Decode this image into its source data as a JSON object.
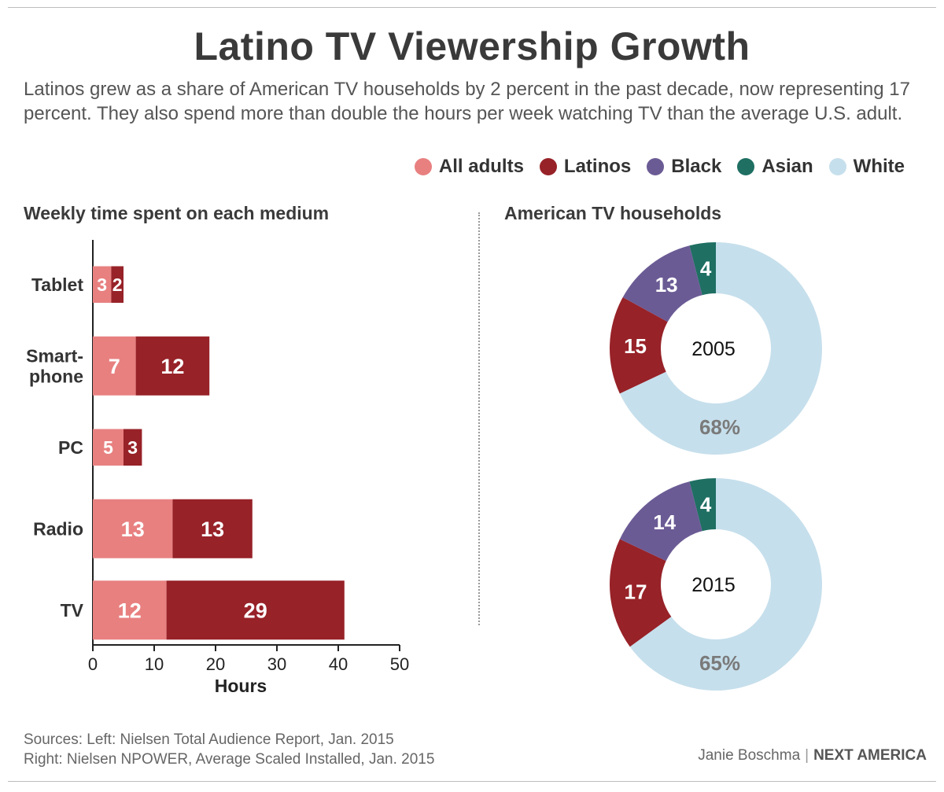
{
  "header": {
    "title": "Latino TV Viewership Growth",
    "subtitle": "Latinos grew as a share of American TV households by 2 percent in the past decade, now representing 17 percent. They also spend more than double the hours per week watching TV than the average U.S. adult."
  },
  "legend": [
    {
      "label": "All adults",
      "color": "#e88080"
    },
    {
      "label": "Latinos",
      "color": "#972228"
    },
    {
      "label": "Black",
      "color": "#6b5b95"
    },
    {
      "label": "Asian",
      "color": "#1f6f63"
    },
    {
      "label": "White",
      "color": "#c6dfec"
    }
  ],
  "chart_data": [
    {
      "type": "bar",
      "title": "Weekly time spent on each medium",
      "xlabel": "Hours",
      "xlim": [
        0,
        50
      ],
      "xticks": [
        0,
        10,
        20,
        30,
        40,
        50
      ],
      "categories": [
        "Tablet",
        "Smart-\nphone",
        "PC",
        "Radio",
        "TV"
      ],
      "series": [
        {
          "name": "All adults",
          "color": "#e88080",
          "values": [
            3,
            7,
            5,
            13,
            12
          ]
        },
        {
          "name": "Latinos",
          "color": "#972228",
          "values": [
            2,
            12,
            3,
            13,
            29
          ]
        }
      ]
    },
    {
      "type": "pie",
      "title": "American TV households",
      "center_label": "2005",
      "slices": [
        {
          "name": "Asian",
          "value": 4,
          "label": "4",
          "color": "#1f6f63"
        },
        {
          "name": "Black",
          "value": 13,
          "label": "13",
          "color": "#6b5b95"
        },
        {
          "name": "Latinos",
          "value": 15,
          "label": "15",
          "color": "#972228"
        },
        {
          "name": "White",
          "value": 68,
          "label": "68%",
          "color": "#c6dfec"
        }
      ]
    },
    {
      "type": "pie",
      "title": "American TV households",
      "center_label": "2015",
      "slices": [
        {
          "name": "Asian",
          "value": 4,
          "label": "4",
          "color": "#1f6f63"
        },
        {
          "name": "Black",
          "value": 14,
          "label": "14",
          "color": "#6b5b95"
        },
        {
          "name": "Latinos",
          "value": 17,
          "label": "17",
          "color": "#972228"
        },
        {
          "name": "White",
          "value": 65,
          "label": "65%",
          "color": "#c6dfec"
        }
      ]
    }
  ],
  "footer": {
    "sources_line1": "Sources: Left: Nielsen Total Audience Report, Jan. 2015",
    "sources_line2": "Right: Nielsen NPOWER, Average Scaled Installed, Jan. 2015",
    "author": "Janie Boschma",
    "separator": "|",
    "publication": "NEXT AMERICA"
  }
}
